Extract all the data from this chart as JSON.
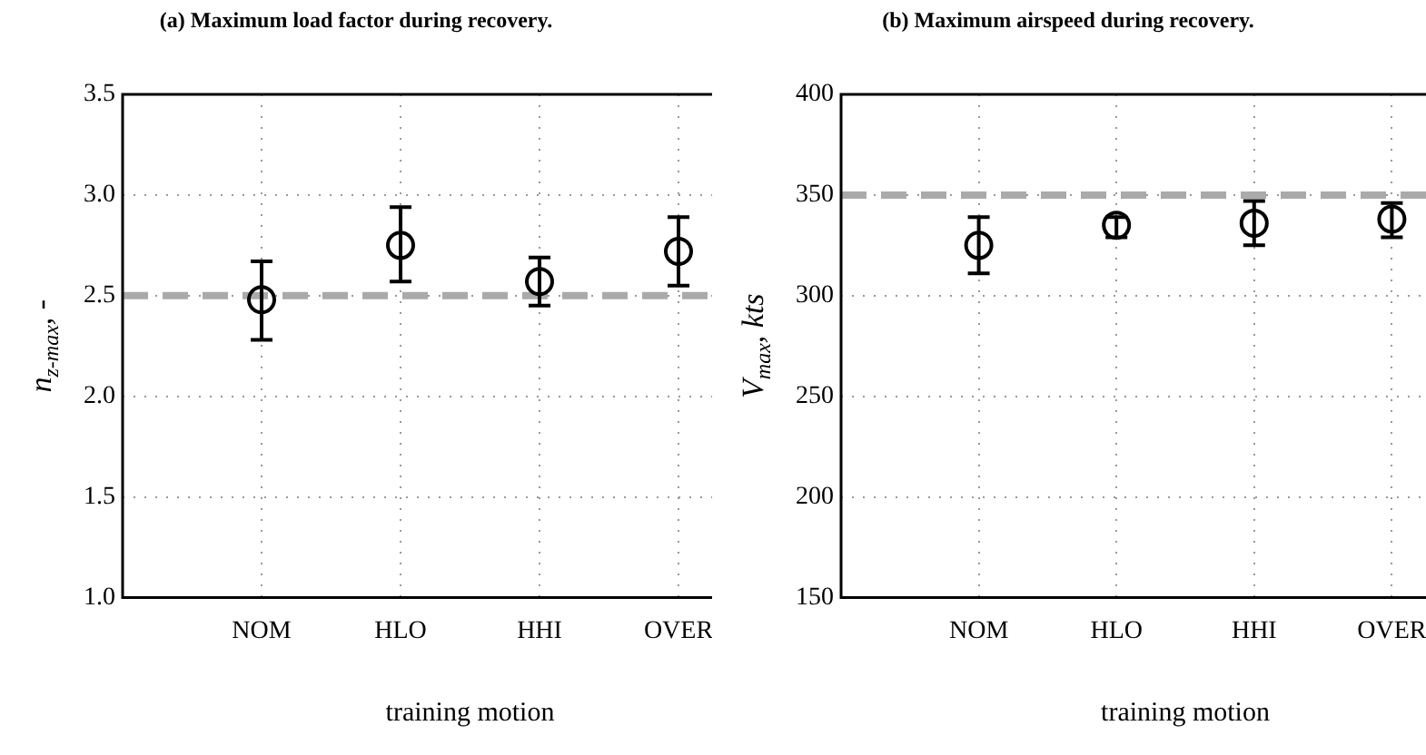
{
  "chart_data": [
    {
      "type": "scatter",
      "title": "(a) Maximum load factor during recovery.",
      "xlabel": "training motion",
      "ylabel": "n$_{z-max}$, -",
      "categories": [
        "NOM",
        "HLO",
        "HHI",
        "OVER"
      ],
      "marker": "circle",
      "grid": true,
      "legend": false,
      "ylim": [
        1.0,
        3.5
      ],
      "yticks": [
        {
          "value": 1.0,
          "label": "1.0"
        },
        {
          "value": 1.5,
          "label": "1.5"
        },
        {
          "value": 2.0,
          "label": "2.0"
        },
        {
          "value": 2.5,
          "label": "2.5"
        },
        {
          "value": 3.0,
          "label": "3.0"
        },
        {
          "value": 3.5,
          "label": "3.5"
        }
      ],
      "series": [
        {
          "color": "#000000",
          "values": [
            2.48,
            2.75,
            2.57,
            2.72
          ],
          "errors": [
            [
              2.28,
              2.67
            ],
            [
              2.57,
              2.94
            ],
            [
              2.45,
              2.69
            ],
            [
              2.55,
              2.89
            ]
          ]
        }
      ],
      "ref_lines": [
        {
          "axis": "y",
          "value": 2.5,
          "color": "#aaaaaa",
          "line_style": "dashed"
        }
      ]
    },
    {
      "type": "scatter",
      "title": "(b) Maximum airspeed during recovery.",
      "xlabel": "training motion",
      "ylabel": "V$_{max}$, kts",
      "categories": [
        "NOM",
        "HLO",
        "HHI",
        "OVER"
      ],
      "marker": "circle",
      "grid": true,
      "legend": false,
      "ylim": [
        150,
        400
      ],
      "yticks": [
        150,
        200,
        250,
        300,
        350,
        400
      ],
      "series": [
        {
          "color": "#000000",
          "values": [
            325,
            335,
            336,
            338
          ],
          "errors": [
            [
              311,
              339
            ],
            [
              329,
              339
            ],
            [
              325,
              347
            ],
            [
              329,
              346
            ]
          ]
        }
      ],
      "ref_lines": [
        {
          "axis": "y",
          "value": 350,
          "color": "#aaaaaa",
          "line_style": "dashed"
        }
      ]
    }
  ]
}
